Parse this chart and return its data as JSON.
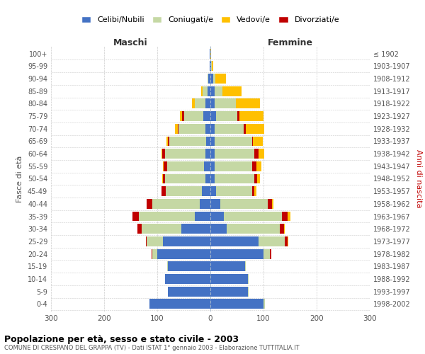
{
  "age_groups": [
    "0-4",
    "5-9",
    "10-14",
    "15-19",
    "20-24",
    "25-29",
    "30-34",
    "35-39",
    "40-44",
    "45-49",
    "50-54",
    "55-59",
    "60-64",
    "65-69",
    "70-74",
    "75-79",
    "80-84",
    "85-89",
    "90-94",
    "95-99",
    "100+"
  ],
  "birth_years": [
    "1998-2002",
    "1993-1997",
    "1988-1992",
    "1983-1987",
    "1978-1982",
    "1973-1977",
    "1968-1972",
    "1963-1967",
    "1958-1962",
    "1953-1957",
    "1948-1952",
    "1943-1947",
    "1938-1942",
    "1933-1937",
    "1928-1932",
    "1923-1927",
    "1918-1922",
    "1913-1917",
    "1908-1912",
    "1903-1907",
    "≤ 1902"
  ],
  "male": {
    "celibi": [
      115,
      80,
      85,
      80,
      100,
      90,
      55,
      30,
      20,
      16,
      10,
      12,
      10,
      8,
      10,
      14,
      10,
      5,
      4,
      1,
      1
    ],
    "coniugati": [
      0,
      0,
      1,
      2,
      10,
      30,
      75,
      105,
      90,
      68,
      75,
      70,
      75,
      70,
      50,
      35,
      20,
      10,
      2,
      0,
      0
    ],
    "vedovi": [
      0,
      0,
      0,
      0,
      0,
      0,
      0,
      0,
      0,
      0,
      1,
      1,
      1,
      3,
      5,
      5,
      5,
      2,
      0,
      0,
      0
    ],
    "divorziati": [
      0,
      0,
      0,
      0,
      1,
      2,
      8,
      12,
      10,
      8,
      5,
      6,
      6,
      2,
      2,
      4,
      0,
      0,
      0,
      0,
      0
    ]
  },
  "female": {
    "nubili": [
      100,
      70,
      70,
      65,
      100,
      90,
      30,
      25,
      18,
      10,
      8,
      8,
      8,
      8,
      8,
      10,
      8,
      8,
      5,
      1,
      0
    ],
    "coniugate": [
      2,
      2,
      2,
      2,
      12,
      50,
      100,
      110,
      90,
      68,
      75,
      70,
      75,
      70,
      55,
      40,
      40,
      15,
      4,
      1,
      0
    ],
    "vedove": [
      0,
      0,
      0,
      0,
      1,
      2,
      2,
      5,
      3,
      3,
      5,
      10,
      10,
      18,
      35,
      45,
      45,
      35,
      20,
      3,
      1
    ],
    "divorziate": [
      0,
      0,
      0,
      0,
      2,
      5,
      8,
      10,
      8,
      5,
      5,
      8,
      8,
      2,
      3,
      5,
      0,
      0,
      0,
      0,
      0
    ]
  },
  "colors": {
    "celibi": "#4472c4",
    "coniugati": "#c5d8a4",
    "vedovi": "#ffc000",
    "divorziati": "#c00000"
  },
  "title": "Popolazione per età, sesso e stato civile - 2003",
  "subtitle": "COMUNE DI CRESPANO DEL GRAPPA (TV) - Dati ISTAT 1° gennaio 2003 - Elaborazione TUTTITALIA.IT",
  "xlabel_left": "Maschi",
  "xlabel_right": "Femmine",
  "ylabel_left": "Fasce di età",
  "ylabel_right": "Anni di nascita",
  "legend_labels": [
    "Celibi/Nubili",
    "Coniugati/e",
    "Vedovi/e",
    "Divorziati/e"
  ],
  "xlim": 300,
  "background_color": "#ffffff",
  "grid_color": "#cccccc"
}
